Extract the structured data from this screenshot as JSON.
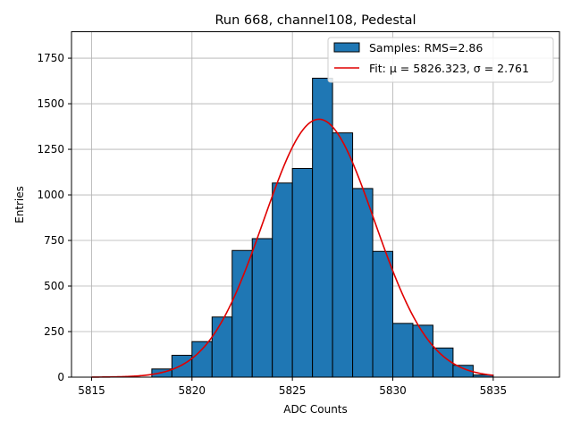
{
  "chart_data": {
    "type": "bar",
    "title": "Run 668, channel108, Pedestal",
    "xlabel": "ADC Counts",
    "ylabel": "Entries",
    "xlim": [
      5814,
      5838.3
    ],
    "ylim": [
      0,
      1895
    ],
    "grid": true,
    "legend_position": "top-right",
    "x_ticks": [
      5815,
      5820,
      5825,
      5830,
      5835
    ],
    "y_ticks": [
      0,
      250,
      500,
      750,
      1000,
      1250,
      1500,
      1750
    ],
    "histogram": {
      "name": "Samples: RMS=2.86",
      "color": "#1f77b4",
      "edge_color": "#000000",
      "bins": [
        {
          "left": 5818,
          "right": 5819,
          "count": 45
        },
        {
          "left": 5819,
          "right": 5820,
          "count": 120
        },
        {
          "left": 5820,
          "right": 5821,
          "count": 195
        },
        {
          "left": 5821,
          "right": 5822,
          "count": 330
        },
        {
          "left": 5822,
          "right": 5823,
          "count": 695
        },
        {
          "left": 5823,
          "right": 5824,
          "count": 760
        },
        {
          "left": 5824,
          "right": 5825,
          "count": 1065
        },
        {
          "left": 5825,
          "right": 5826,
          "count": 1145
        },
        {
          "left": 5826,
          "right": 5827,
          "count": 1640
        },
        {
          "left": 5827,
          "right": 5828,
          "count": 1340
        },
        {
          "left": 5828,
          "right": 5829,
          "count": 1035
        },
        {
          "left": 5829,
          "right": 5830,
          "count": 690
        },
        {
          "left": 5830,
          "right": 5831,
          "count": 295
        },
        {
          "left": 5831,
          "right": 5832,
          "count": 285
        },
        {
          "left": 5832,
          "right": 5833,
          "count": 160
        },
        {
          "left": 5833,
          "right": 5834,
          "count": 65
        },
        {
          "left": 5834,
          "right": 5835,
          "count": 12
        }
      ]
    },
    "fit": {
      "name": "Fit: μ = 5826.323, σ = 2.761",
      "color": "#e00000",
      "mu": 5826.323,
      "sigma": 2.761,
      "amplitude": 1415,
      "x_range": [
        5815,
        5835
      ]
    }
  }
}
